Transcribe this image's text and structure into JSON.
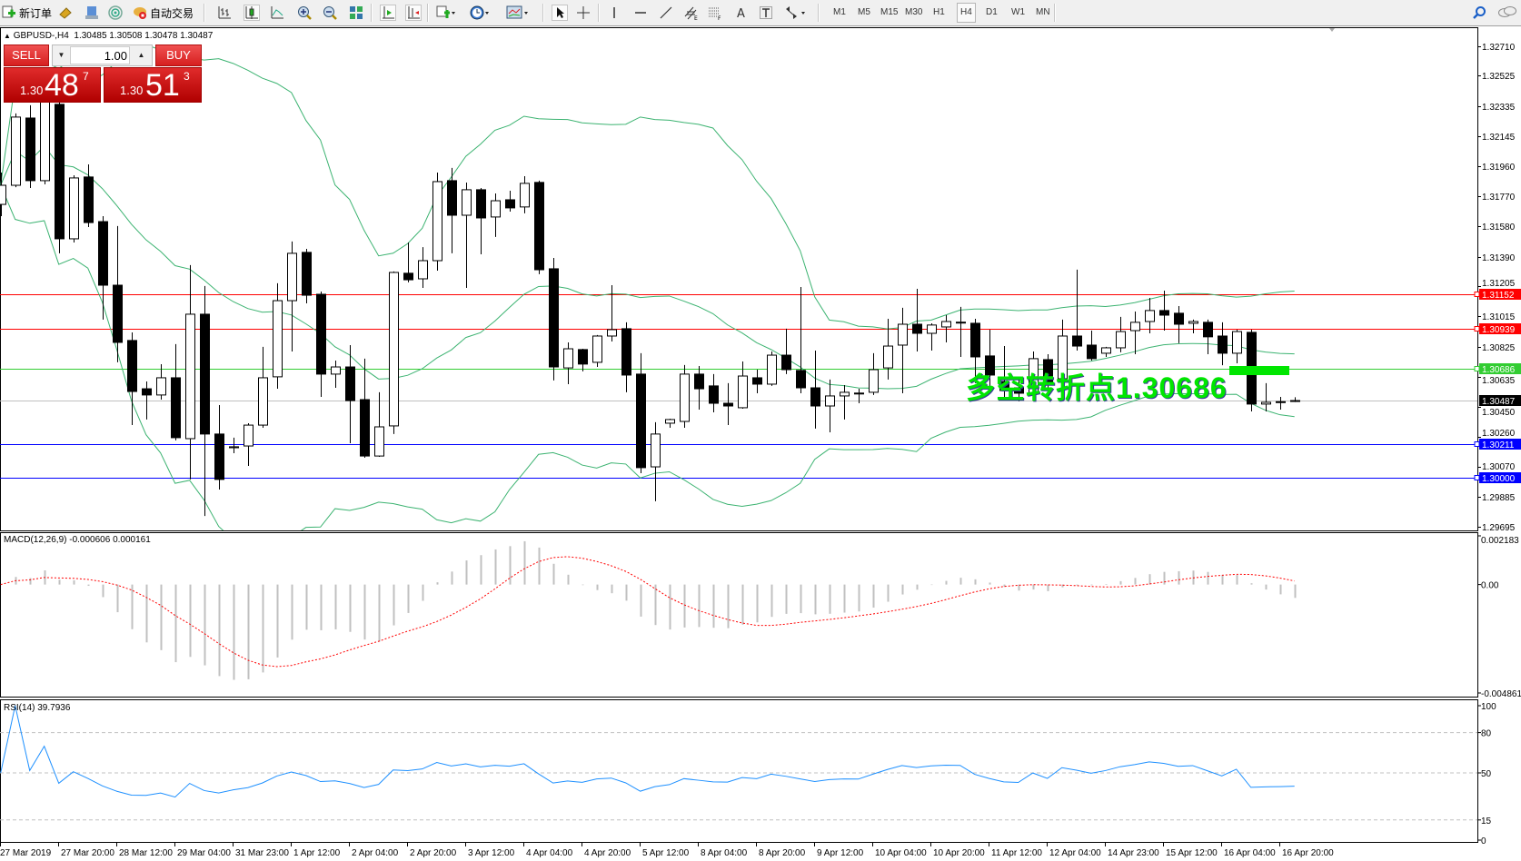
{
  "toolbar": {
    "new_order": "新订单",
    "auto_trading": "自动交易",
    "timeframes": [
      "M1",
      "M5",
      "M15",
      "M30",
      "H1",
      "H4",
      "D1",
      "W1",
      "MN"
    ],
    "active_timeframe": "H4"
  },
  "chart": {
    "symbol_title": "GBPUSD-,H4  1.30485 1.30508 1.30478 1.30487",
    "one_click": {
      "sell_label": "SELL",
      "buy_label": "BUY",
      "lot": "1.00",
      "sell_price": {
        "prefix": "1.30",
        "big": "48",
        "sup": "7"
      },
      "buy_price": {
        "prefix": "1.30",
        "big": "51",
        "sup": "3"
      }
    },
    "price_axis": [
      "1.32710",
      "1.32525",
      "1.32335",
      "1.32145",
      "1.31960",
      "1.31770",
      "1.31580",
      "1.31390",
      "1.31205",
      "1.31015",
      "1.30825",
      "1.30635",
      "1.30450",
      "1.30260",
      "1.30070",
      "1.29885",
      "1.29695"
    ],
    "price_range": [
      1.29695,
      1.3271
    ],
    "levels": [
      {
        "price": "1.31152",
        "color": "#ff0000"
      },
      {
        "price": "1.30939",
        "color": "#ff0000"
      },
      {
        "price": "1.30686",
        "color": "#32cd32"
      },
      {
        "price": "1.30487",
        "color": "#000000",
        "line_color": "#c0c0c0"
      },
      {
        "price": "1.30211",
        "color": "#0000ff"
      },
      {
        "price": "1.30000",
        "color": "#0000ff"
      }
    ],
    "annotation": "多空转折点1.30686",
    "annotation_color": "#00e600",
    "band_color": "#3cb371",
    "ohlc": [
      [
        1.31718,
        1.31918,
        1.31644,
        1.31838
      ],
      [
        1.31838,
        1.32289,
        1.31826,
        1.32266
      ],
      [
        1.3226,
        1.3234,
        1.31821,
        1.31867
      ],
      [
        1.31867,
        1.32402,
        1.31844,
        1.32363
      ],
      [
        1.32346,
        1.32386,
        1.31411,
        1.31502
      ],
      [
        1.31502,
        1.31901,
        1.31479,
        1.31884
      ],
      [
        1.3189,
        1.31969,
        1.31576,
        1.31604
      ],
      [
        1.3161,
        1.31644,
        1.30995,
        1.31211
      ],
      [
        1.31211,
        1.31582,
        1.30727,
        1.30852
      ],
      [
        1.30864,
        1.30915,
        1.30333,
        1.30544
      ],
      [
        1.30561,
        1.30607,
        1.30368,
        1.30522
      ],
      [
        1.30522,
        1.30715,
        1.30493,
        1.3063
      ],
      [
        1.3063,
        1.30841,
        1.30237,
        1.30254
      ],
      [
        1.30248,
        1.31337,
        1.29992,
        1.31029
      ],
      [
        1.31029,
        1.31206,
        1.29763,
        1.30277
      ],
      [
        1.30277,
        1.30459,
        1.29929,
        1.29992
      ],
      [
        1.30191,
        1.30254,
        1.30157,
        1.30197
      ],
      [
        1.30202,
        1.30345,
        1.30077,
        1.30333
      ],
      [
        1.30333,
        1.30824,
        1.30316,
        1.3063
      ],
      [
        1.30636,
        1.31223,
        1.30561,
        1.31114
      ],
      [
        1.31114,
        1.31485,
        1.30795,
        1.31411
      ],
      [
        1.31417,
        1.31439,
        1.31097,
        1.31148
      ],
      [
        1.31154,
        1.31171,
        1.3051,
        1.30653
      ],
      [
        1.30653,
        1.30738,
        1.30567,
        1.30698
      ],
      [
        1.30698,
        1.30835,
        1.30219,
        1.30487
      ],
      [
        1.30493,
        1.3075,
        1.30128,
        1.30139
      ],
      [
        1.30139,
        1.30539,
        1.30134,
        1.30322
      ],
      [
        1.30328,
        1.31297,
        1.30277,
        1.31291
      ],
      [
        1.31286,
        1.31479,
        1.31229,
        1.31245
      ],
      [
        1.31251,
        1.3145,
        1.31194,
        1.31365
      ],
      [
        1.31365,
        1.31918,
        1.31302,
        1.31861
      ],
      [
        1.31867,
        1.31947,
        1.31411,
        1.3165
      ],
      [
        1.3165,
        1.31855,
        1.31194,
        1.3181
      ],
      [
        1.3181,
        1.31821,
        1.31405,
        1.31633
      ],
      [
        1.31639,
        1.31787,
        1.31514,
        1.31741
      ],
      [
        1.31747,
        1.31804,
        1.31673,
        1.31696
      ],
      [
        1.31702,
        1.31895,
        1.31662,
        1.3185
      ],
      [
        1.31856,
        1.31867,
        1.3128,
        1.31308
      ],
      [
        1.31314,
        1.31382,
        1.30613,
        1.30698
      ],
      [
        1.30692,
        1.30852,
        1.3059,
        1.30812
      ],
      [
        1.30807,
        1.30812,
        1.3067,
        1.30716
      ],
      [
        1.30727,
        1.30898,
        1.30698,
        1.30892
      ],
      [
        1.30892,
        1.31211,
        1.30858,
        1.30932
      ],
      [
        1.30938,
        1.30978,
        1.30539,
        1.30647
      ],
      [
        1.30653,
        1.30784,
        1.30031,
        1.30066
      ],
      [
        1.30071,
        1.30351,
        1.29855,
        1.30277
      ],
      [
        1.30345,
        1.30373,
        1.30316,
        1.30368
      ],
      [
        1.30356,
        1.3071,
        1.30316,
        1.30653
      ],
      [
        1.30653,
        1.30704,
        1.3043,
        1.30561
      ],
      [
        1.30579,
        1.30653,
        1.30413,
        1.3047
      ],
      [
        1.3047,
        1.30596,
        1.30333,
        1.30453
      ],
      [
        1.30442,
        1.30732,
        1.30436,
        1.30641
      ],
      [
        1.3063,
        1.30681,
        1.30533,
        1.3059
      ],
      [
        1.3059,
        1.30795,
        1.30579,
        1.30772
      ],
      [
        1.30772,
        1.30938,
        1.30653,
        1.30681
      ],
      [
        1.30676,
        1.312,
        1.30533,
        1.30567
      ],
      [
        1.30567,
        1.30801,
        1.30311,
        1.30453
      ],
      [
        1.30453,
        1.30619,
        1.30288,
        1.30516
      ],
      [
        1.30516,
        1.30584,
        1.30368,
        1.30539
      ],
      [
        1.30533,
        1.30561,
        1.3047,
        1.30534
      ],
      [
        1.30539,
        1.30784,
        1.30522,
        1.30681
      ],
      [
        1.30692,
        1.31,
        1.30619,
        1.30829
      ],
      [
        1.30835,
        1.31069,
        1.30533,
        1.30966
      ],
      [
        1.30966,
        1.31188,
        1.30795,
        1.30909
      ],
      [
        1.30909,
        1.30972,
        1.30801,
        1.30961
      ],
      [
        1.30949,
        1.31023,
        1.30852,
        1.30983
      ],
      [
        1.30978,
        1.31075,
        1.30761,
        1.30979
      ],
      [
        1.30972,
        1.31,
        1.30596,
        1.30761
      ],
      [
        1.30767,
        1.30932,
        1.3055,
        1.30647
      ],
      [
        1.30607,
        1.30829,
        1.30507,
        1.3055
      ],
      [
        1.30567,
        1.30636,
        1.30482,
        1.30533
      ],
      [
        1.30533,
        1.30795,
        1.30493,
        1.3075
      ],
      [
        1.30744,
        1.30778,
        1.30493,
        1.30607
      ],
      [
        1.30624,
        1.30995,
        1.30607,
        1.30892
      ],
      [
        1.30892,
        1.31309,
        1.30801,
        1.30829
      ],
      [
        1.30835,
        1.30926,
        1.30738,
        1.3075
      ],
      [
        1.30784,
        1.30824,
        1.30761,
        1.30818
      ],
      [
        1.30818,
        1.31012,
        1.3079,
        1.3092
      ],
      [
        1.30926,
        1.31046,
        1.30778,
        1.30978
      ],
      [
        1.30983,
        1.31131,
        1.30909,
        1.31052
      ],
      [
        1.31052,
        1.31177,
        1.30926,
        1.31023
      ],
      [
        1.31035,
        1.3108,
        1.30847,
        1.30966
      ],
      [
        1.30972,
        1.30995,
        1.30909,
        1.30983
      ],
      [
        1.30978,
        1.30995,
        1.30778,
        1.30887
      ],
      [
        1.30892,
        1.30978,
        1.30709,
        1.30784
      ],
      [
        1.30784,
        1.30932,
        1.30721,
        1.3092
      ],
      [
        1.30915,
        1.30932,
        1.30419,
        1.30465
      ],
      [
        1.30465,
        1.30596,
        1.30419,
        1.30476
      ],
      [
        1.30476,
        1.3051,
        1.3043,
        1.3048
      ],
      [
        1.30485,
        1.30508,
        1.30478,
        1.30487
      ]
    ],
    "time_axis": [
      "27 Mar 2019",
      "27 Mar 20:00",
      "28 Mar 12:00",
      "29 Mar 04:00",
      "31 Mar 23:00",
      "1 Apr 12:00",
      "2 Apr 04:00",
      "2 Apr 20:00",
      "3 Apr 12:00",
      "4 Apr 04:00",
      "4 Apr 20:00",
      "5 Apr 12:00",
      "8 Apr 04:00",
      "8 Apr 20:00",
      "9 Apr 12:00",
      "10 Apr 04:00",
      "10 Apr 20:00",
      "11 Apr 12:00",
      "12 Apr 04:00",
      "14 Apr 23:00",
      "15 Apr 12:00",
      "16 Apr 04:00",
      "16 Apr 20:00"
    ]
  },
  "macd": {
    "label": "MACD(12,26,9) -0.000606 0.000161",
    "axis": [
      "0.002183",
      "0.00",
      "-0.004861"
    ],
    "range": [
      -0.004861,
      0.002183
    ],
    "hist_color": "#c0c0c0",
    "signal_color": "#ff0000"
  },
  "rsi": {
    "label": "RSI(14) 39.7936",
    "axis": [
      "100",
      "80",
      "50",
      "15",
      "0"
    ],
    "levels": [
      80,
      50,
      15
    ],
    "line_color": "#1e90ff"
  }
}
